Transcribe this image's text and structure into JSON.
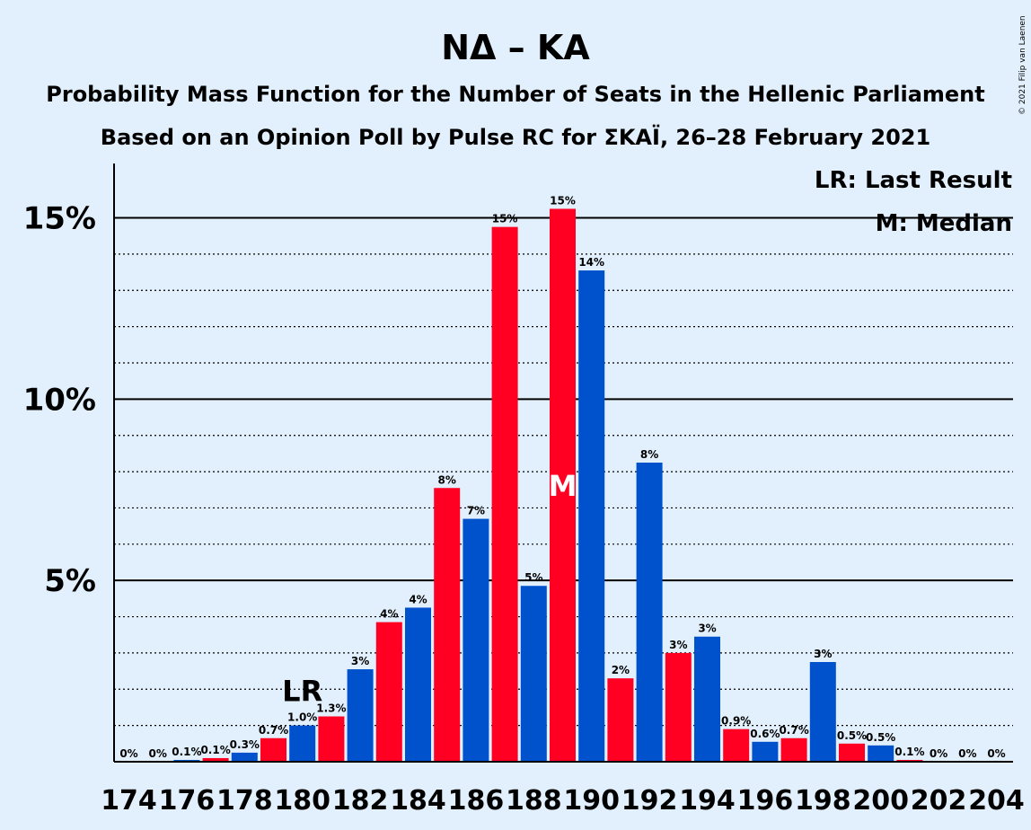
{
  "copyright": "© 2021 Filip van Laenen",
  "colors": {
    "background": "#e2f0fd",
    "red": "#ff0022",
    "blue": "#0052cc",
    "axis": "#000000"
  },
  "legend": {
    "last_result": "LR: Last Result",
    "median": "M: Median"
  },
  "chart_data": {
    "type": "bar",
    "title": "ΝΔ – ΚΑ",
    "subtitle_1": "Probability Mass Function for the Number of Seats in the Hellenic Parliament",
    "subtitle_2": "Based on an Opinion Poll by Pulse RC for ΣΚΑΪ, 26–28 February 2021",
    "xlabel": "",
    "ylabel": "",
    "ylim": [
      0,
      16.5
    ],
    "y_ticks": [
      {
        "value": 5,
        "label": "5%"
      },
      {
        "value": 10,
        "label": "10%"
      },
      {
        "value": 15,
        "label": "15%"
      }
    ],
    "y_minor_gridlines": [
      1,
      2,
      3,
      4,
      6,
      7,
      8,
      9,
      11,
      12,
      13,
      14
    ],
    "x_tick_labels": [
      "174",
      "176",
      "178",
      "180",
      "182",
      "184",
      "186",
      "188",
      "190",
      "192",
      "194",
      "196",
      "198",
      "200",
      "202",
      "204"
    ],
    "seats": [
      174,
      175,
      176,
      177,
      178,
      179,
      180,
      181,
      182,
      183,
      184,
      185,
      186,
      187,
      188,
      189,
      190,
      191,
      192,
      193,
      194,
      195,
      196,
      197,
      198,
      199,
      200,
      201,
      202,
      203,
      204
    ],
    "values": [
      0,
      0,
      0.05,
      0.1,
      0.25,
      0.65,
      1.0,
      1.25,
      2.55,
      3.85,
      4.25,
      7.55,
      6.7,
      14.75,
      4.85,
      15.25,
      13.55,
      2.3,
      8.25,
      3.0,
      3.45,
      0.9,
      0.55,
      0.65,
      2.75,
      0.5,
      0.45,
      0.05,
      0,
      0,
      0
    ],
    "data_labels": [
      "0%",
      "0%",
      "0.1%",
      "0.1%",
      "0.3%",
      "0.7%",
      "1.0%",
      "1.3%",
      "3%",
      "4%",
      "4%",
      "8%",
      "7%",
      "15%",
      "5%",
      "15%",
      "14%",
      "2%",
      "8%",
      "3%",
      "3%",
      "0.9%",
      "0.6%",
      "0.7%",
      "3%",
      "0.5%",
      "0.5%",
      "0.1%",
      "0%",
      "0%",
      "0%"
    ],
    "last_result_seat": 180,
    "last_result_label": "LR",
    "median_seat": 189,
    "median_label": "M",
    "grid": true,
    "legend_position": "top-right"
  }
}
